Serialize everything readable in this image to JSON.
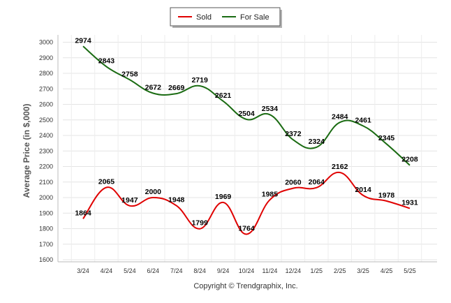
{
  "chart_data": {
    "type": "line",
    "categories": [
      "3/24",
      "4/24",
      "5/24",
      "6/24",
      "7/24",
      "8/24",
      "9/24",
      "10/24",
      "11/24",
      "12/24",
      "1/25",
      "2/25",
      "3/25",
      "4/25",
      "5/25"
    ],
    "series": [
      {
        "name": "Sold",
        "color": "#e00000",
        "values": [
          1864,
          2065,
          1947,
          2000,
          1948,
          1799,
          1969,
          1764,
          1985,
          2060,
          2064,
          2162,
          2014,
          1978,
          1931
        ]
      },
      {
        "name": "For Sale",
        "color": "#1a6b12",
        "values": [
          2974,
          2843,
          2758,
          2672,
          2669,
          2719,
          2621,
          2504,
          2534,
          2372,
          2324,
          2484,
          2461,
          2345,
          2208
        ]
      }
    ],
    "ylabel": "Average Price (in $,000)",
    "yticks": [
      1600,
      1700,
      1800,
      1900,
      2000,
      2100,
      2200,
      2300,
      2400,
      2500,
      2600,
      2700,
      2800,
      2900,
      3000
    ],
    "ylim": [
      1550,
      3050
    ],
    "grid": true,
    "legend_position": "top-center",
    "credit": "Copyright © Trendgraphix, Inc."
  }
}
